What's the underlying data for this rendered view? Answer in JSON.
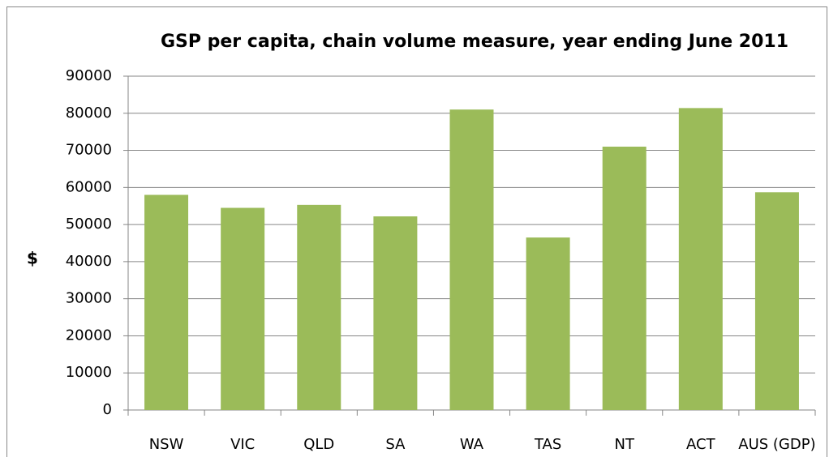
{
  "chart_data": {
    "type": "bar",
    "title": "GSP per capita, chain volume measure, year ending June 2011",
    "y_label": "$",
    "categories": [
      "NSW",
      "VIC",
      "QLD",
      "SA",
      "WA",
      "TAS",
      "NT",
      "ACT",
      "AUS (GDP)"
    ],
    "values": [
      58000,
      54500,
      55300,
      52200,
      81000,
      46500,
      71000,
      81400,
      58700
    ],
    "color": "#9bbb59",
    "ylim": [
      0,
      90000
    ],
    "yticks": [
      0,
      10000,
      20000,
      30000,
      40000,
      50000,
      60000,
      70000,
      80000,
      90000
    ],
    "grid": true
  }
}
